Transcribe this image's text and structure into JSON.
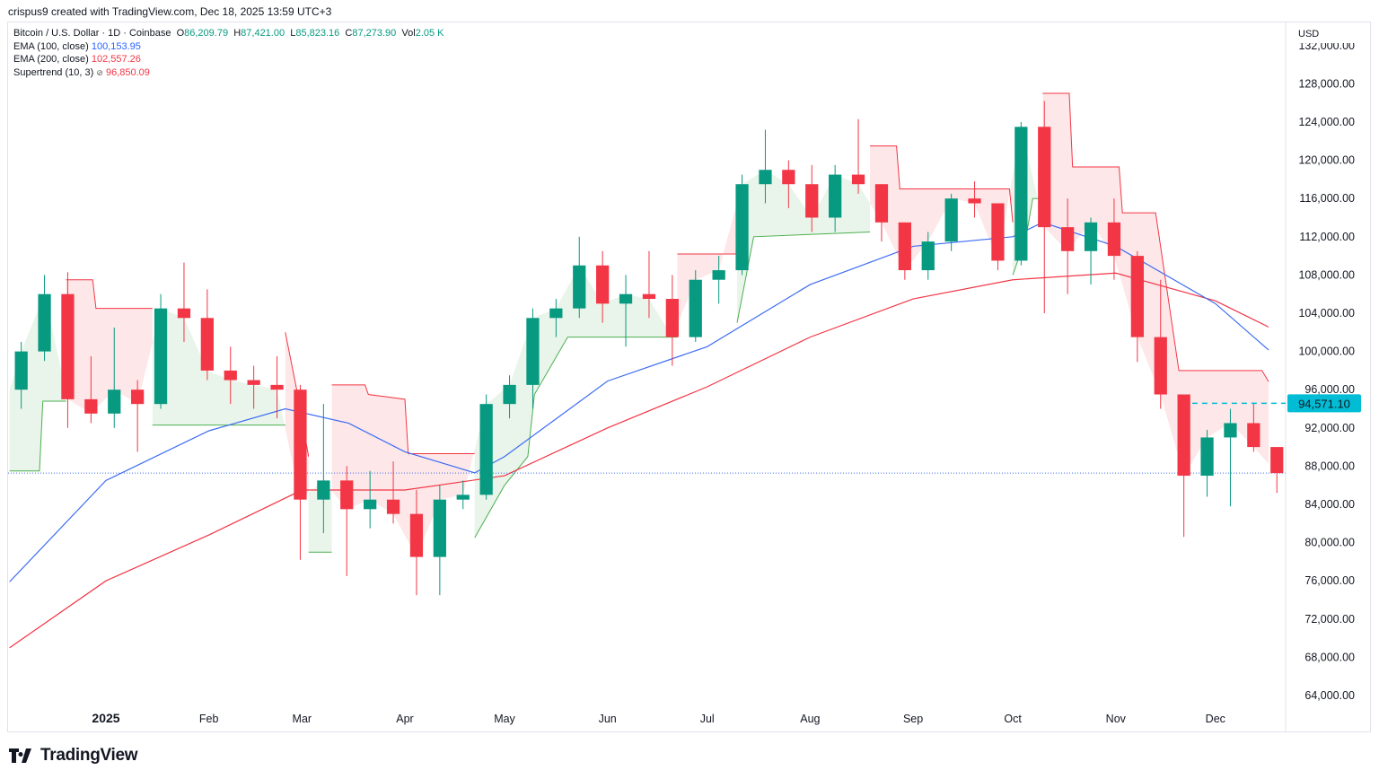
{
  "credit": "crispus9 created with TradingView.com, Dec 18, 2025 13:59 UTC+3",
  "legend": {
    "symbol": "Bitcoin / U.S. Dollar · 1D · Coinbase",
    "o_label": "O",
    "o": "86,209.79",
    "h_label": "H",
    "h": "87,421.00",
    "l_label": "L",
    "l": "85,823.16",
    "c_label": "C",
    "c": "87,273.90",
    "vol_label": "Vol",
    "vol": "2.05 K",
    "ema100_label": "EMA (100, close)",
    "ema100": "100,153.95",
    "ema200_label": "EMA (200, close)",
    "ema200": "102,557.26",
    "supertrend_label": "Supertrend (10, 3)",
    "supertrend_icon": "hidden-eye-icon",
    "supertrend": "96,850.09"
  },
  "brand": "TradingView",
  "chart_data": {
    "type": "candlestick",
    "currency": "USD",
    "ylim": [
      62000,
      134000
    ],
    "xlim": [
      "2024-12-03",
      "2025-12-22"
    ],
    "y_ticks": [
      "64,000.00",
      "68,000.00",
      "72,000.00",
      "76,000.00",
      "80,000.00",
      "84,000.00",
      "88,000.00",
      "92,000.00",
      "96,000.00",
      "100,000.00",
      "104,000.00",
      "108,000.00",
      "112,000.00",
      "116,000.00",
      "120,000.00",
      "124,000.00",
      "128,000.00",
      "132,000.00"
    ],
    "x_ticks": [
      {
        "label": "2025",
        "date": "2025-01-01",
        "bold": true
      },
      {
        "label": "Feb",
        "date": "2025-02-01"
      },
      {
        "label": "Mar",
        "date": "2025-03-01"
      },
      {
        "label": "Apr",
        "date": "2025-04-01"
      },
      {
        "label": "May",
        "date": "2025-05-01"
      },
      {
        "label": "Jun",
        "date": "2025-06-01"
      },
      {
        "label": "Jul",
        "date": "2025-07-01"
      },
      {
        "label": "Aug",
        "date": "2025-08-01"
      },
      {
        "label": "Sep",
        "date": "2025-09-01"
      },
      {
        "label": "Oct",
        "date": "2025-10-01"
      },
      {
        "label": "Nov",
        "date": "2025-11-01"
      },
      {
        "label": "Dec",
        "date": "2025-12-01"
      }
    ],
    "colors": {
      "up": "#089981",
      "down": "#f23645",
      "ema100": "#3d6cf2",
      "ema200": "#f23645",
      "st_up": "#4caf50",
      "st_down": "#f23645",
      "marker": "#00bcd4"
    },
    "ohlc_weekly": [
      [
        "2024-12-03",
        96000,
        101000,
        94000,
        100000
      ],
      [
        "2024-12-10",
        100000,
        108000,
        99000,
        106000
      ],
      [
        "2024-12-17",
        106000,
        108300,
        92000,
        95000
      ],
      [
        "2024-12-24",
        95000,
        99500,
        92500,
        93500
      ],
      [
        "2024-12-31",
        93500,
        102500,
        92000,
        96000
      ],
      [
        "2025-01-07",
        96000,
        97000,
        89500,
        94500
      ],
      [
        "2025-01-14",
        94500,
        106000,
        94000,
        104500
      ],
      [
        "2025-01-21",
        104500,
        109300,
        101000,
        103500
      ],
      [
        "2025-01-28",
        103500,
        106500,
        97000,
        98000
      ],
      [
        "2025-02-04",
        98000,
        100500,
        94500,
        97000
      ],
      [
        "2025-02-11",
        97000,
        98500,
        94000,
        96500
      ],
      [
        "2025-02-18",
        96500,
        99500,
        93000,
        96000
      ],
      [
        "2025-02-25",
        96000,
        96500,
        78200,
        84500
      ],
      [
        "2025-03-04",
        84500,
        94500,
        81000,
        86500
      ],
      [
        "2025-03-11",
        86500,
        88000,
        76500,
        83500
      ],
      [
        "2025-03-18",
        83500,
        87500,
        81500,
        84500
      ],
      [
        "2025-03-25",
        84500,
        88500,
        82000,
        83000
      ],
      [
        "2025-04-01",
        83000,
        85500,
        74500,
        78500
      ],
      [
        "2025-04-08",
        78500,
        86000,
        74500,
        84500
      ],
      [
        "2025-04-15",
        84500,
        86500,
        83500,
        85000
      ],
      [
        "2025-04-22",
        85000,
        95500,
        84500,
        94500
      ],
      [
        "2025-04-29",
        94500,
        97500,
        93000,
        96500
      ],
      [
        "2025-05-06",
        96500,
        104500,
        94000,
        103500
      ],
      [
        "2025-05-13",
        103500,
        105500,
        101500,
        104500
      ],
      [
        "2025-05-20",
        104500,
        112000,
        103500,
        109000
      ],
      [
        "2025-05-27",
        109000,
        110500,
        103000,
        105000
      ],
      [
        "2025-06-03",
        105000,
        108000,
        100500,
        106000
      ],
      [
        "2025-06-10",
        106000,
        110500,
        103500,
        105500
      ],
      [
        "2025-06-17",
        105500,
        108000,
        98500,
        101500
      ],
      [
        "2025-06-24",
        101500,
        108500,
        101000,
        107500
      ],
      [
        "2025-07-01",
        107500,
        110000,
        105000,
        108500
      ],
      [
        "2025-07-08",
        108500,
        118500,
        108000,
        117500
      ],
      [
        "2025-07-15",
        117500,
        123200,
        115500,
        119000
      ],
      [
        "2025-07-22",
        119000,
        120000,
        115000,
        117500
      ],
      [
        "2025-07-29",
        117500,
        119500,
        112500,
        114000
      ],
      [
        "2025-08-05",
        114000,
        119500,
        112500,
        118500
      ],
      [
        "2025-08-12",
        118500,
        124300,
        116500,
        117500
      ],
      [
        "2025-08-19",
        117500,
        117500,
        111500,
        113500
      ],
      [
        "2025-08-26",
        113500,
        113500,
        107500,
        108500
      ],
      [
        "2025-09-02",
        108500,
        112500,
        107500,
        111500
      ],
      [
        "2025-09-09",
        111500,
        116500,
        110500,
        116000
      ],
      [
        "2025-09-16",
        116000,
        117800,
        114000,
        115500
      ],
      [
        "2025-09-23",
        115500,
        115500,
        108500,
        109500
      ],
      [
        "2025-09-30",
        109500,
        124000,
        109000,
        123500
      ],
      [
        "2025-10-07",
        123500,
        126200,
        104000,
        113000
      ],
      [
        "2025-10-14",
        113000,
        116000,
        106000,
        110500
      ],
      [
        "2025-10-21",
        110500,
        114000,
        107000,
        113500
      ],
      [
        "2025-10-28",
        113500,
        116000,
        107500,
        110000
      ],
      [
        "2025-11-04",
        110000,
        110500,
        98900,
        101500
      ],
      [
        "2025-11-11",
        101500,
        107500,
        94000,
        95500
      ],
      [
        "2025-11-18",
        95500,
        95500,
        80600,
        87000
      ],
      [
        "2025-11-25",
        87000,
        91800,
        84800,
        91000
      ],
      [
        "2025-12-02",
        91000,
        94000,
        83800,
        92500
      ],
      [
        "2025-12-09",
        92500,
        94600,
        89500,
        90000
      ],
      [
        "2025-12-16",
        90000,
        90000,
        85200,
        87273.9
      ]
    ],
    "ema100": [
      [
        "2024-12-03",
        75900
      ],
      [
        "2025-01-01",
        86500
      ],
      [
        "2025-02-01",
        91700
      ],
      [
        "2025-02-24",
        94000
      ],
      [
        "2025-03-15",
        92500
      ],
      [
        "2025-04-01",
        89500
      ],
      [
        "2025-04-22",
        87300
      ],
      [
        "2025-05-01",
        89000
      ],
      [
        "2025-06-01",
        96900
      ],
      [
        "2025-07-01",
        100500
      ],
      [
        "2025-08-01",
        107000
      ],
      [
        "2025-09-01",
        111000
      ],
      [
        "2025-10-01",
        112000
      ],
      [
        "2025-10-10",
        113500
      ],
      [
        "2025-11-01",
        111000
      ],
      [
        "2025-12-01",
        105000
      ],
      [
        "2025-12-17",
        100153.95
      ]
    ],
    "ema200": [
      [
        "2024-12-03",
        69000
      ],
      [
        "2025-01-01",
        76000
      ],
      [
        "2025-02-01",
        80800
      ],
      [
        "2025-03-01",
        85500
      ],
      [
        "2025-04-01",
        85500
      ],
      [
        "2025-05-01",
        87000
      ],
      [
        "2025-06-01",
        92000
      ],
      [
        "2025-07-01",
        96300
      ],
      [
        "2025-08-01",
        101500
      ],
      [
        "2025-09-01",
        105500
      ],
      [
        "2025-10-01",
        107500
      ],
      [
        "2025-11-01",
        108200
      ],
      [
        "2025-12-01",
        105300
      ],
      [
        "2025-12-17",
        102557.26
      ]
    ],
    "supertrend": [
      {
        "dir": "up",
        "points": [
          [
            "2024-12-03",
            87500
          ],
          [
            "2024-12-12",
            87500
          ],
          [
            "2024-12-13",
            94800
          ],
          [
            "2024-12-20",
            94800
          ]
        ]
      },
      {
        "dir": "down",
        "points": [
          [
            "2024-12-20",
            107500
          ],
          [
            "2024-12-28",
            107500
          ],
          [
            "2024-12-29",
            104500
          ],
          [
            "2025-01-15",
            104500
          ]
        ]
      },
      {
        "dir": "up",
        "points": [
          [
            "2025-01-15",
            92300
          ],
          [
            "2025-02-24",
            92300
          ]
        ]
      },
      {
        "dir": "down",
        "points": [
          [
            "2025-02-24",
            102000
          ],
          [
            "2025-02-28",
            95000
          ],
          [
            "2025-03-03",
            89000
          ]
        ]
      },
      {
        "dir": "up",
        "points": [
          [
            "2025-03-03",
            79000
          ],
          [
            "2025-03-10",
            79000
          ]
        ]
      },
      {
        "dir": "down",
        "points": [
          [
            "2025-03-10",
            96500
          ],
          [
            "2025-03-20",
            96500
          ],
          [
            "2025-03-21",
            95500
          ],
          [
            "2025-04-01",
            95000
          ],
          [
            "2025-04-02",
            89300
          ],
          [
            "2025-04-22",
            89300
          ]
        ]
      },
      {
        "dir": "up",
        "points": [
          [
            "2025-04-22",
            80500
          ],
          [
            "2025-05-01",
            86000
          ],
          [
            "2025-05-08",
            89000
          ],
          [
            "2025-05-10",
            95500
          ],
          [
            "2025-05-20",
            101500
          ],
          [
            "2025-06-22",
            101500
          ]
        ]
      },
      {
        "dir": "down",
        "points": [
          [
            "2025-06-22",
            110200
          ],
          [
            "2025-07-10",
            110200
          ]
        ]
      },
      {
        "dir": "up",
        "points": [
          [
            "2025-07-10",
            103000
          ],
          [
            "2025-07-15",
            112000
          ],
          [
            "2025-08-19",
            112500
          ]
        ]
      },
      {
        "dir": "down",
        "points": [
          [
            "2025-08-19",
            121500
          ],
          [
            "2025-08-27",
            121500
          ],
          [
            "2025-08-28",
            117000
          ],
          [
            "2025-09-30",
            117000
          ],
          [
            "2025-10-01",
            113500
          ]
        ]
      },
      {
        "dir": "up",
        "points": [
          [
            "2025-10-01",
            108000
          ],
          [
            "2025-10-05",
            112000
          ],
          [
            "2025-10-07",
            116000
          ],
          [
            "2025-10-10",
            116000
          ]
        ]
      },
      {
        "dir": "down",
        "points": [
          [
            "2025-10-10",
            127000
          ],
          [
            "2025-10-18",
            127000
          ],
          [
            "2025-10-19",
            119300
          ],
          [
            "2025-11-02",
            119300
          ],
          [
            "2025-11-03",
            114500
          ],
          [
            "2025-11-13",
            114500
          ],
          [
            "2025-11-20",
            98000
          ],
          [
            "2025-12-15",
            98000
          ],
          [
            "2025-12-17",
            96850.09
          ]
        ]
      }
    ],
    "last_price": 87273.9,
    "horizontal_line": {
      "value": 94571.1,
      "label": "94,571.10",
      "from": "2025-11-24",
      "to": "2025-12-22"
    }
  }
}
